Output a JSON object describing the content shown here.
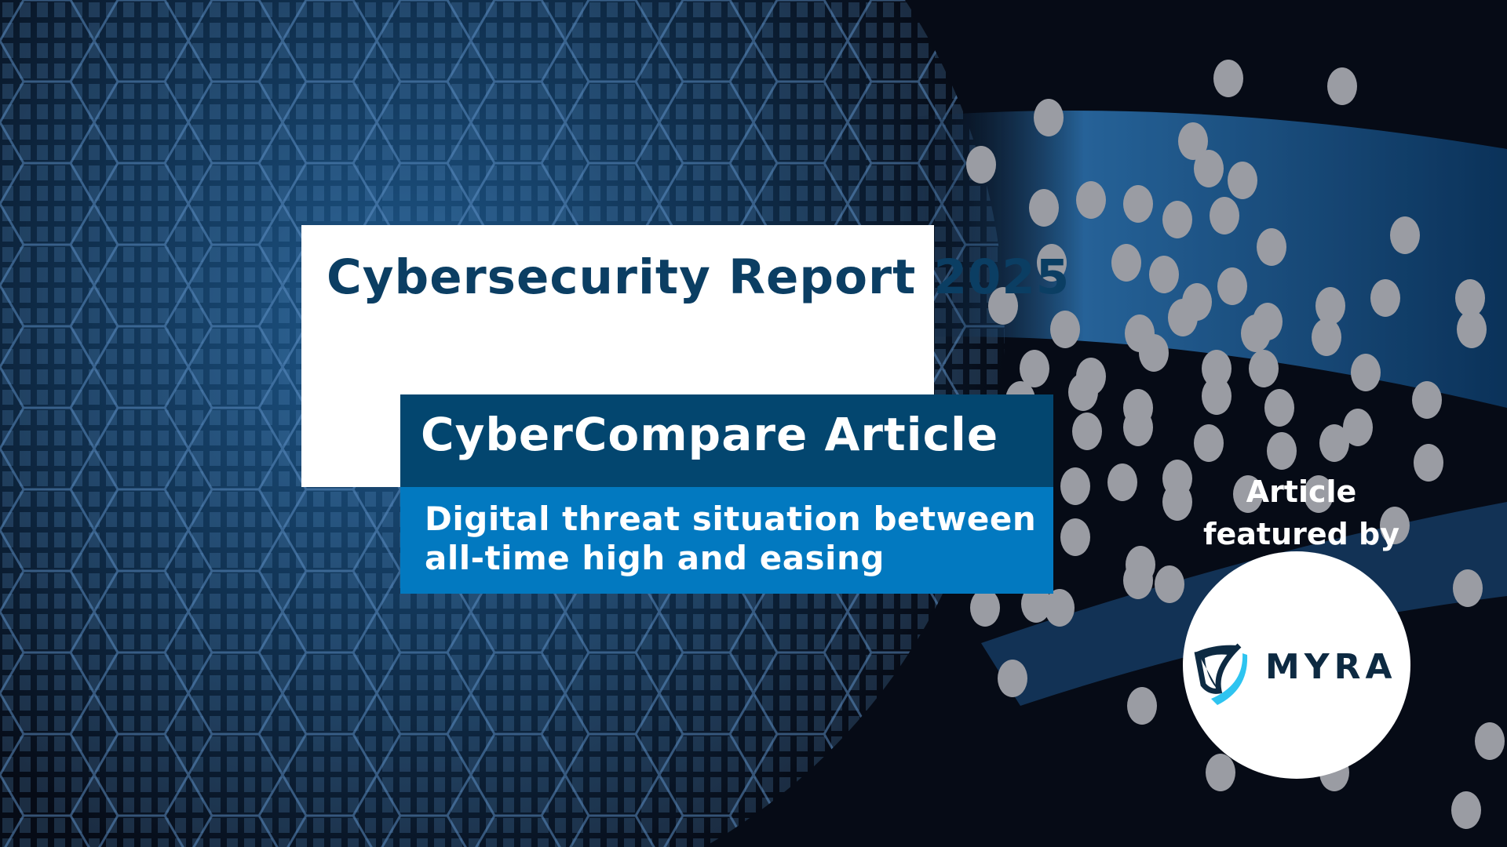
{
  "report_title": "Cybersecurity Report 2025",
  "article_label": "CyberCompare Article",
  "subtitle": "Digital threat situation between all-time high and easing",
  "featured_by": "Article featured by",
  "sponsor_logo": {
    "text": "MYRA",
    "icon": "shield-icon"
  },
  "colors": {
    "title_text": "#0b3e63",
    "dark_blue_band": "#03466f",
    "light_blue_band": "#0279c0",
    "logo_dark": "#0d2a42",
    "logo_accent": "#2ec4f0",
    "dots": "#9a9ca3"
  }
}
